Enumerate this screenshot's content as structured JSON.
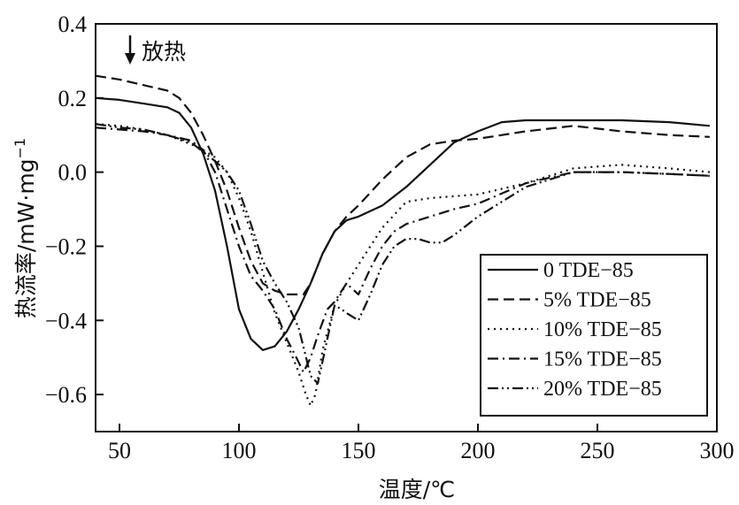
{
  "chart_data": {
    "type": "line",
    "xlabel": "温度/℃",
    "ylabel": "热流率/mW·mg",
    "ylabel_sup": "−1",
    "annotation": "放热",
    "xlim": [
      40,
      300
    ],
    "ylim": [
      -0.7,
      0.4
    ],
    "xticks": [
      50,
      100,
      150,
      200,
      250,
      300
    ],
    "xtick_labels": [
      "50",
      "100",
      "150",
      "200",
      "250",
      "300"
    ],
    "yticks": [
      0.4,
      0.2,
      0.0,
      -0.2,
      -0.4,
      -0.6
    ],
    "ytick_labels": [
      "0.4",
      "0.2",
      "0.0",
      "−0.2",
      "−0.4",
      "−0.6"
    ],
    "legend_position": "bottom-right",
    "series": [
      {
        "name": "0 TDE−85",
        "dash": "solid",
        "x": [
          40,
          50,
          60,
          70,
          75,
          80,
          85,
          90,
          95,
          100,
          105,
          110,
          115,
          120,
          125,
          130,
          135,
          140,
          145,
          150,
          160,
          170,
          180,
          190,
          200,
          210,
          220,
          240,
          260,
          280,
          297
        ],
        "y": [
          0.2,
          0.195,
          0.185,
          0.175,
          0.16,
          0.12,
          0.05,
          -0.05,
          -0.2,
          -0.37,
          -0.45,
          -0.48,
          -0.47,
          -0.43,
          -0.37,
          -0.3,
          -0.22,
          -0.16,
          -0.13,
          -0.12,
          -0.09,
          -0.04,
          0.02,
          0.08,
          0.11,
          0.135,
          0.14,
          0.14,
          0.14,
          0.135,
          0.125
        ]
      },
      {
        "name": "5% TDE−85",
        "dash": "dashed",
        "x": [
          40,
          50,
          60,
          70,
          75,
          80,
          85,
          90,
          95,
          100,
          105,
          110,
          115,
          120,
          125,
          127,
          130,
          135,
          140,
          145,
          150,
          160,
          170,
          180,
          190,
          200,
          210,
          220,
          240,
          260,
          280,
          297
        ],
        "y": [
          0.26,
          0.25,
          0.235,
          0.22,
          0.2,
          0.16,
          0.1,
          0.03,
          -0.05,
          -0.15,
          -0.24,
          -0.3,
          -0.32,
          -0.33,
          -0.33,
          -0.33,
          -0.3,
          -0.22,
          -0.16,
          -0.12,
          -0.09,
          -0.02,
          0.04,
          0.075,
          0.085,
          0.09,
          0.1,
          0.11,
          0.125,
          0.11,
          0.1,
          0.095
        ]
      },
      {
        "name": "10% TDE−85",
        "dash": "dotted",
        "x": [
          40,
          50,
          60,
          70,
          80,
          85,
          90,
          95,
          100,
          105,
          110,
          115,
          120,
          125,
          128,
          130,
          132,
          135,
          140,
          145,
          150,
          160,
          170,
          180,
          190,
          200,
          220,
          240,
          260,
          280,
          297
        ],
        "y": [
          0.13,
          0.125,
          0.115,
          0.1,
          0.075,
          0.06,
          0.04,
          0.0,
          -0.07,
          -0.16,
          -0.27,
          -0.38,
          -0.46,
          -0.54,
          -0.6,
          -0.63,
          -0.6,
          -0.48,
          -0.36,
          -0.3,
          -0.25,
          -0.15,
          -0.08,
          -0.07,
          -0.065,
          -0.06,
          -0.03,
          0.01,
          0.02,
          0.01,
          0.0
        ]
      },
      {
        "name": "15% TDE−85",
        "dash": "dashdot",
        "x": [
          40,
          50,
          60,
          70,
          80,
          85,
          90,
          95,
          100,
          105,
          110,
          115,
          120,
          124,
          127,
          130,
          133,
          137,
          140,
          145,
          150,
          155,
          160,
          165,
          170,
          180,
          190,
          200,
          220,
          240,
          260,
          280,
          297
        ],
        "y": [
          0.12,
          0.115,
          0.11,
          0.1,
          0.085,
          0.06,
          0.0,
          -0.1,
          -0.2,
          -0.28,
          -0.32,
          -0.37,
          -0.45,
          -0.5,
          -0.54,
          -0.5,
          -0.44,
          -0.37,
          -0.35,
          -0.3,
          -0.33,
          -0.26,
          -0.2,
          -0.16,
          -0.14,
          -0.12,
          -0.1,
          -0.085,
          -0.03,
          0.0,
          0.0,
          -0.005,
          -0.01
        ]
      },
      {
        "name": "20% TDE−85",
        "dash": "dashdotdot",
        "x": [
          40,
          50,
          60,
          70,
          80,
          90,
          95,
          100,
          105,
          110,
          115,
          120,
          125,
          130,
          133,
          137,
          140,
          143,
          145,
          150,
          155,
          160,
          165,
          170,
          175,
          180,
          185,
          190,
          200,
          220,
          240,
          260,
          280,
          297
        ],
        "y": [
          0.13,
          0.12,
          0.115,
          0.1,
          0.08,
          0.03,
          0.0,
          -0.05,
          -0.14,
          -0.24,
          -0.3,
          -0.35,
          -0.42,
          -0.55,
          -0.57,
          -0.45,
          -0.36,
          -0.37,
          -0.38,
          -0.4,
          -0.33,
          -0.25,
          -0.2,
          -0.18,
          -0.18,
          -0.19,
          -0.19,
          -0.17,
          -0.12,
          -0.04,
          0.0,
          0.0,
          -0.005,
          -0.01
        ]
      }
    ]
  }
}
